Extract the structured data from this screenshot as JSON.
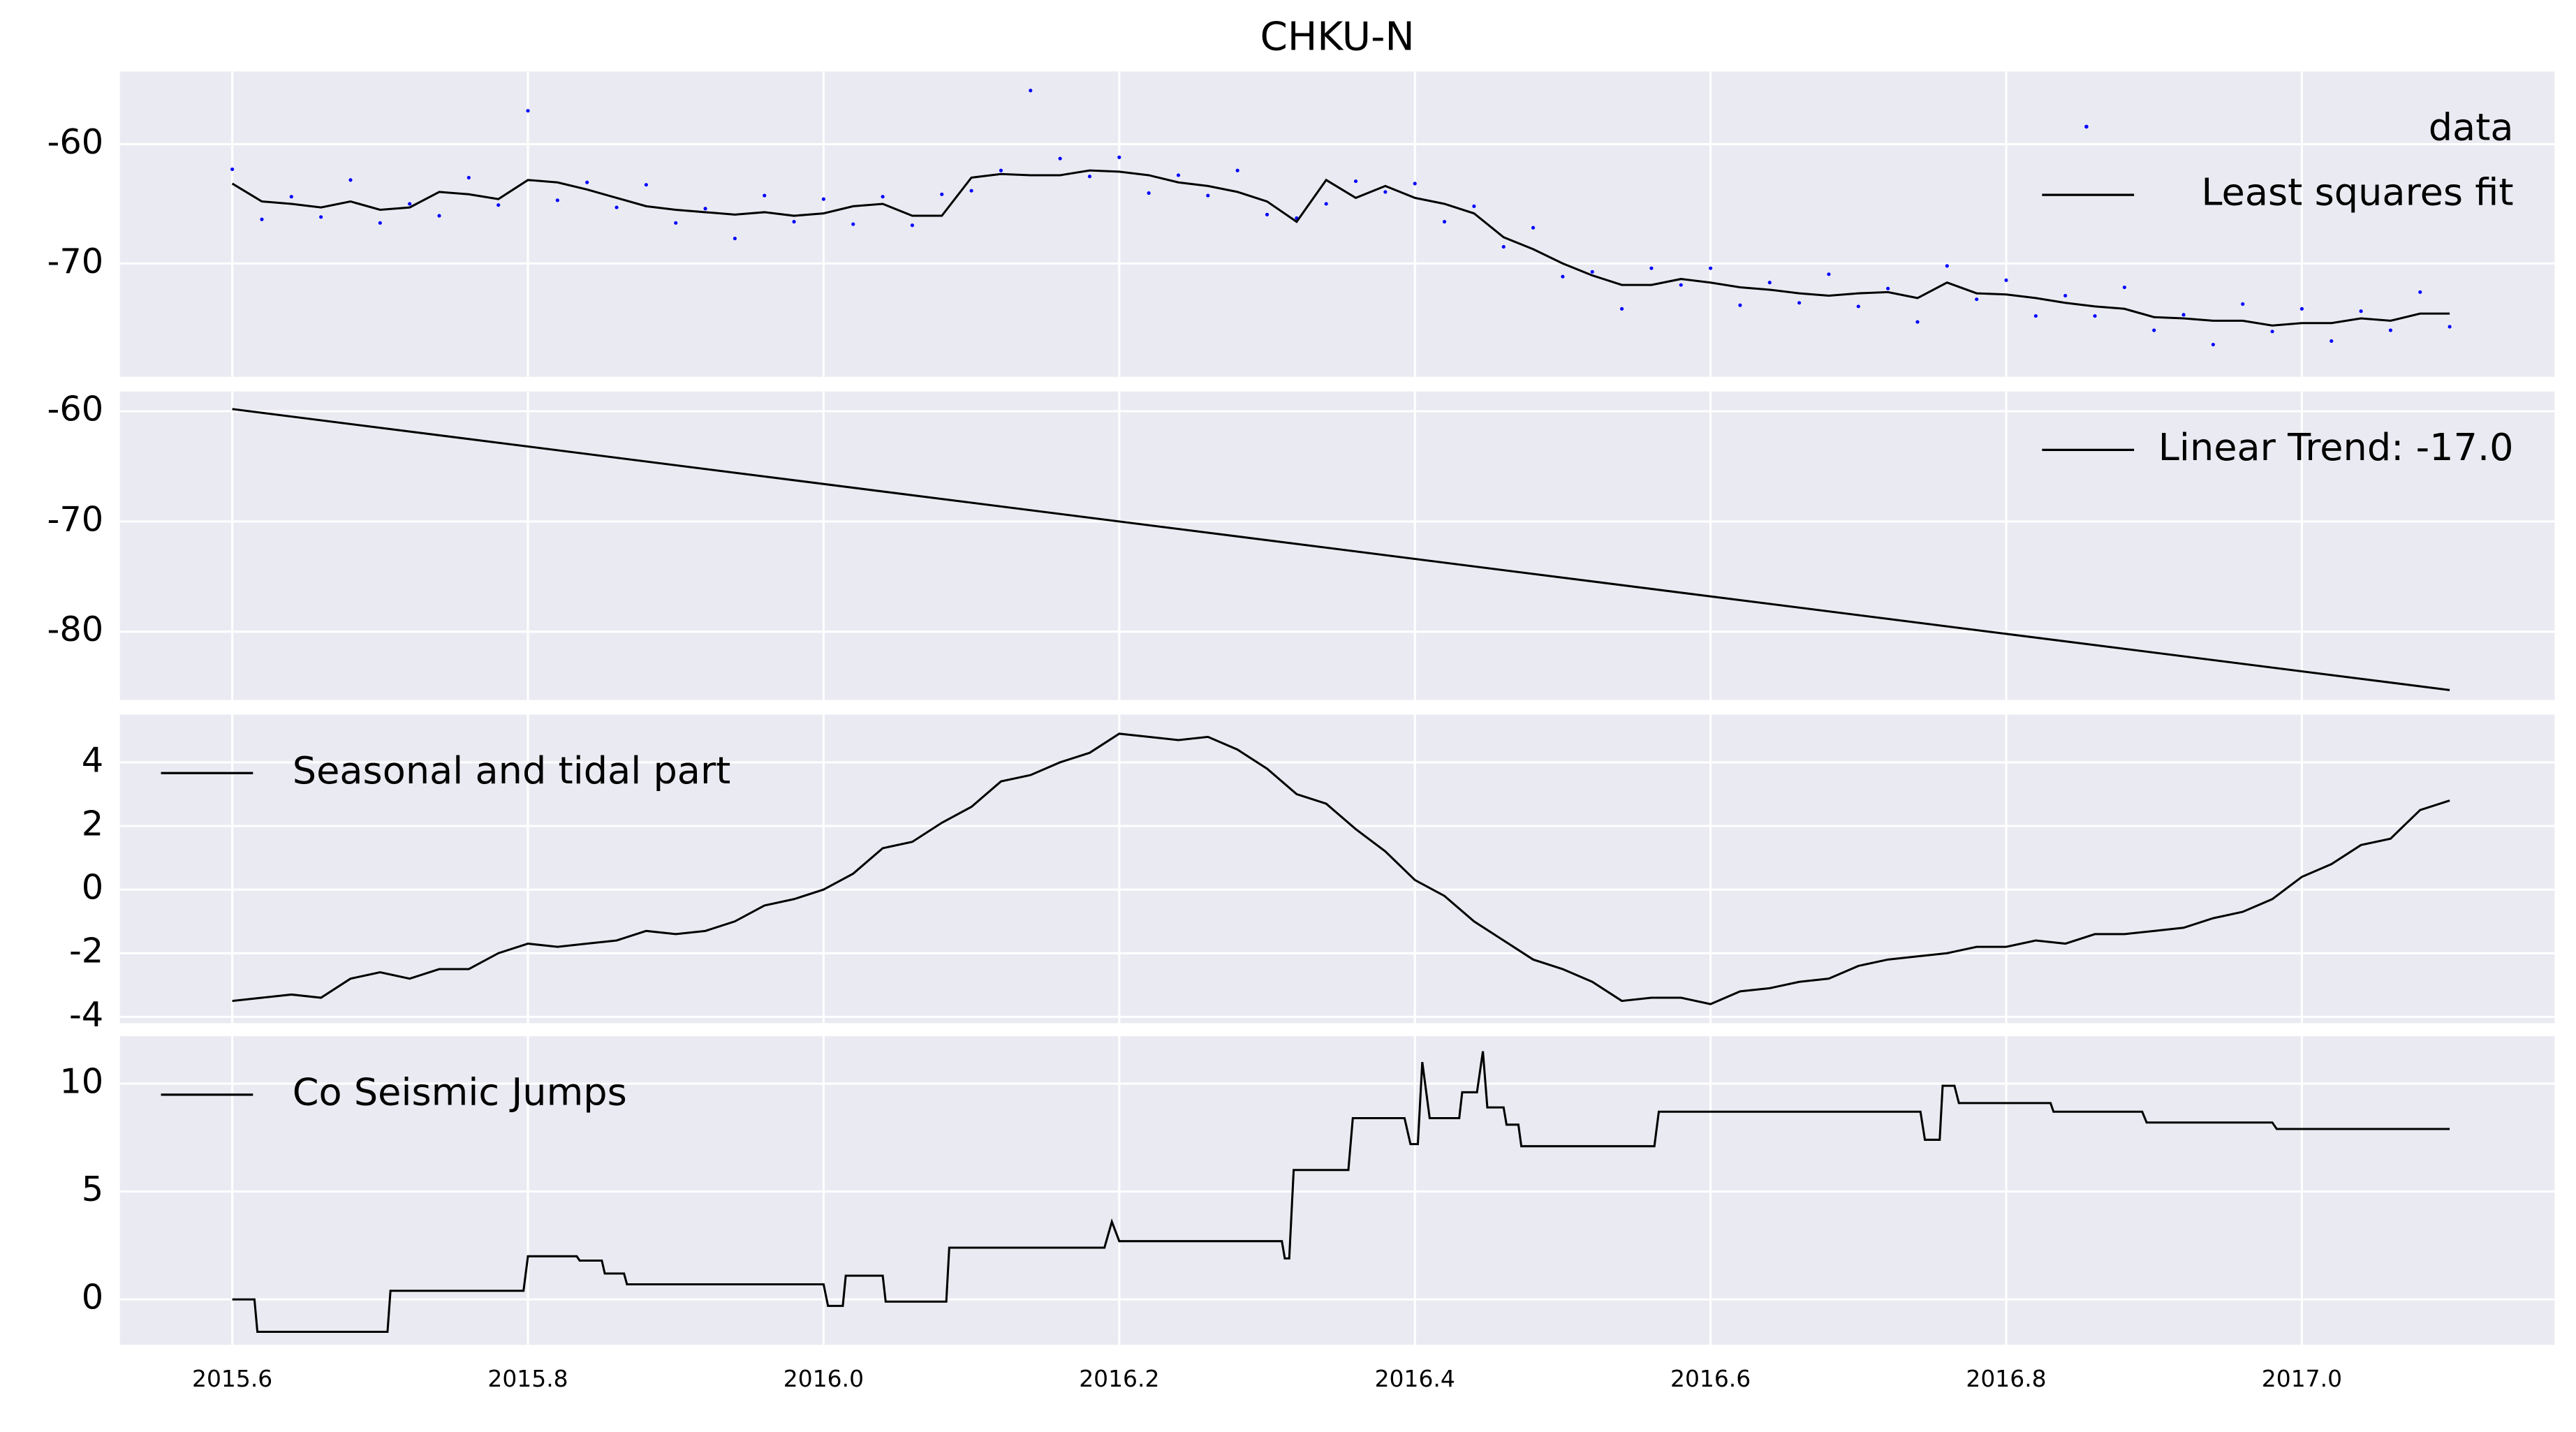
{
  "chart_data": [
    {
      "type": "line",
      "title": "CHKU-N",
      "legend": "upper right",
      "grid": true,
      "ylim": [
        -79.5,
        -53.9
      ],
      "yticks": [
        -60,
        -70
      ],
      "x": [
        2015.6,
        2015.62,
        2015.64,
        2015.66,
        2015.68,
        2015.7,
        2015.72,
        2015.74,
        2015.76,
        2015.78,
        2015.8,
        2015.82,
        2015.84,
        2015.86,
        2015.88,
        2015.9,
        2015.92,
        2015.94,
        2015.96,
        2015.98,
        2016.0,
        2016.02,
        2016.04,
        2016.06,
        2016.08,
        2016.1,
        2016.12,
        2016.14,
        2016.16,
        2016.18,
        2016.2,
        2016.22,
        2016.24,
        2016.26,
        2016.28,
        2016.3,
        2016.32,
        2016.34,
        2016.36,
        2016.38,
        2016.4,
        2016.42,
        2016.44,
        2016.46,
        2016.48,
        2016.5,
        2016.52,
        2016.54,
        2016.56,
        2016.58,
        2016.6,
        2016.62,
        2016.64,
        2016.66,
        2016.68,
        2016.7,
        2016.72,
        2016.74,
        2016.76,
        2016.78,
        2016.8,
        2016.82,
        2016.84,
        2016.86,
        2016.88,
        2016.9,
        2016.92,
        2016.94,
        2016.96,
        2016.98,
        2017.0,
        2017.02,
        2017.04,
        2017.06,
        2017.08,
        2017.1
      ],
      "series": [
        {
          "name": "data",
          "type": "scatter",
          "color": "#0000ff",
          "values": [
            -62.1,
            -66.3,
            -64.4,
            -66.1,
            -63.0,
            -66.6,
            -65.0,
            -66.0,
            -62.8,
            -65.1,
            -57.2,
            -64.7,
            -63.2,
            -65.3,
            -63.4,
            -66.6,
            -65.4,
            -67.9,
            -64.3,
            -66.5,
            -64.6,
            -66.7,
            -64.4,
            -66.8,
            -64.2,
            -63.9,
            -62.2,
            -55.5,
            -61.2,
            -62.7,
            -61.1,
            -64.1,
            -62.6,
            -64.3,
            -62.2,
            -65.9,
            -66.2,
            -65.0,
            -63.1,
            -64.0,
            -63.3,
            -66.5,
            -65.2,
            -68.6,
            -67.0,
            -71.1,
            -70.7,
            -73.8,
            -70.4,
            -71.8,
            -70.4,
            -73.5,
            -71.6,
            -73.3,
            -70.9,
            -73.6,
            -72.1,
            -74.9,
            -70.2,
            -73.0,
            -71.4,
            -74.4,
            -72.7,
            -74.4,
            -72.0,
            -75.6,
            -74.3,
            -76.8,
            -73.4,
            -75.7,
            -73.8,
            -76.5,
            -74.0,
            -75.6,
            -72.4,
            -75.3
          ]
        },
        {
          "name": "Least squares fit",
          "type": "line",
          "color": "#000000",
          "values": [
            -63.3,
            -64.8,
            -65,
            -65.3,
            -64.8,
            -65.5,
            -65.3,
            -64,
            -64.2,
            -64.6,
            -63,
            -63.2,
            -63.8,
            -64.5,
            -65.2,
            -65.5,
            -65.7,
            -65.9,
            -65.7,
            -66,
            -65.8,
            -65.2,
            -65,
            -66,
            -66,
            -62.8,
            -62.5,
            -62.6,
            -62.6,
            -62.2,
            -62.3,
            -62.6,
            -63.2,
            -63.5,
            -64,
            -64.8,
            -66.5,
            -63,
            -64.5,
            -63.5,
            -64.5,
            -65,
            -65.8,
            -67.8,
            -68.8,
            -70,
            -71,
            -71.8,
            -71.8,
            -71.3,
            -71.6,
            -72,
            -72.2,
            -72.5,
            -72.7,
            -72.5,
            -72.4,
            -72.9,
            -71.6,
            -72.5,
            -72.6,
            -72.9,
            -73.3,
            -73.6,
            -73.8,
            -74.5,
            -74.6,
            -74.8,
            -74.8,
            -75.2,
            -75,
            -75,
            -74.6,
            -74.8,
            -74.2,
            -74.2
          ]
        }
      ]
    },
    {
      "type": "line",
      "legend": "upper right",
      "grid": true,
      "ylim": [
        -86.2,
        -58.2
      ],
      "yticks": [
        -60,
        -70,
        -80
      ],
      "x": [
        2015.6,
        2017.1
      ],
      "series": [
        {
          "name": "Linear Trend: -17.0",
          "type": "line",
          "color": "#000000",
          "values": [
            -59.8,
            -85.3
          ]
        }
      ]
    },
    {
      "type": "line",
      "legend": "upper left",
      "grid": true,
      "ylim": [
        -4.2,
        5.5
      ],
      "yticks": [
        4,
        2,
        0,
        -2,
        -4
      ],
      "x": [
        2015.6,
        2015.62,
        2015.64,
        2015.66,
        2015.68,
        2015.7,
        2015.72,
        2015.74,
        2015.76,
        2015.78,
        2015.8,
        2015.82,
        2015.84,
        2015.86,
        2015.88,
        2015.9,
        2015.92,
        2015.94,
        2015.96,
        2015.98,
        2016.0,
        2016.02,
        2016.04,
        2016.06,
        2016.08,
        2016.1,
        2016.12,
        2016.14,
        2016.16,
        2016.18,
        2016.2,
        2016.22,
        2016.24,
        2016.26,
        2016.28,
        2016.3,
        2016.32,
        2016.34,
        2016.36,
        2016.38,
        2016.4,
        2016.42,
        2016.44,
        2016.46,
        2016.48,
        2016.5,
        2016.52,
        2016.54,
        2016.56,
        2016.58,
        2016.6,
        2016.62,
        2016.64,
        2016.66,
        2016.68,
        2016.7,
        2016.72,
        2016.74,
        2016.76,
        2016.78,
        2016.8,
        2016.82,
        2016.84,
        2016.86,
        2016.88,
        2016.9,
        2016.92,
        2016.94,
        2016.96,
        2016.98,
        2017.0,
        2017.02,
        2017.04,
        2017.06,
        2017.08,
        2017.1
      ],
      "series": [
        {
          "name": "Seasonal and tidal part",
          "type": "line",
          "color": "#000000",
          "values": [
            -3.5,
            -3.4,
            -3.3,
            -3.4,
            -2.8,
            -2.6,
            -2.8,
            -2.5,
            -2.5,
            -2,
            -1.7,
            -1.8,
            -1.7,
            -1.6,
            -1.3,
            -1.4,
            -1.3,
            -1.0,
            -0.5,
            -0.3,
            0,
            0.5,
            1.3,
            1.5,
            2.1,
            2.6,
            3.4,
            3.6,
            4.0,
            4.3,
            4.9,
            4.8,
            4.7,
            4.8,
            4.4,
            3.8,
            3.0,
            2.7,
            1.9,
            1.2,
            0.3,
            -0.2,
            -1.0,
            -1.6,
            -2.2,
            -2.5,
            -2.9,
            -3.5,
            -3.4,
            -3.4,
            -3.6,
            -3.2,
            -3.1,
            -2.9,
            -2.8,
            -2.4,
            -2.2,
            -2.1,
            -2.0,
            -1.8,
            -1.8,
            -1.6,
            -1.7,
            -1.4,
            -1.4,
            -1.3,
            -1.2,
            -0.9,
            -0.7,
            -0.3,
            0.4,
            0.8,
            1.4,
            1.6,
            2.5,
            2.8
          ]
        }
      ]
    },
    {
      "type": "line",
      "legend": "upper left",
      "grid": true,
      "ylim": [
        -2.1,
        12.2
      ],
      "yticks": [
        10,
        5,
        0
      ],
      "xlim": [
        2015.524,
        2017.171
      ],
      "xticks": [
        2015.6,
        2015.8,
        {
          "value": 2016.0,
          "label": "2016.0"
        },
        2016.2,
        2016.4,
        2016.6,
        2016.8,
        {
          "value": 2017.0,
          "label": "2017.0"
        }
      ],
      "x": [
        2015.6,
        2015.615,
        2015.617,
        2015.705,
        2015.707,
        2015.797,
        2015.8,
        2015.833,
        2015.835,
        2015.85,
        2015.852,
        2015.865,
        2015.867,
        2016.0,
        2016.003,
        2016.013,
        2016.015,
        2016.04,
        2016.042,
        2016.083,
        2016.085,
        2016.19,
        2016.195,
        2016.2,
        2016.31,
        2016.312,
        2016.315,
        2016.318,
        2016.355,
        2016.358,
        2016.393,
        2016.397,
        2016.402,
        2016.405,
        2016.41,
        2016.43,
        2016.432,
        2016.442,
        2016.446,
        2016.449,
        2016.46,
        2016.462,
        2016.47,
        2016.472,
        2016.562,
        2016.565,
        2016.742,
        2016.745,
        2016.755,
        2016.757,
        2016.765,
        2016.768,
        2016.83,
        2016.832,
        2016.892,
        2016.895,
        2016.98,
        2016.983,
        2017.1
      ],
      "series": [
        {
          "name": "Co Seismic Jumps",
          "type": "line",
          "color": "#000000",
          "values": [
            0,
            0,
            -1.5,
            -1.5,
            0.4,
            0.4,
            2,
            2,
            1.8,
            1.8,
            1.2,
            1.2,
            0.7,
            0.7,
            -0.3,
            -0.3,
            1.1,
            1.1,
            -0.1,
            -0.1,
            2.4,
            2.4,
            3.6,
            2.7,
            2.7,
            1.9,
            1.9,
            6.0,
            6.0,
            8.4,
            8.4,
            7.2,
            7.2,
            11,
            8.4,
            8.4,
            9.6,
            9.6,
            11.5,
            8.9,
            8.9,
            8.1,
            8.1,
            7.1,
            7.1,
            8.7,
            8.7,
            7.4,
            7.4,
            9.9,
            9.9,
            9.1,
            9.1,
            8.7,
            8.7,
            8.2,
            8.2,
            7.9,
            7.9
          ]
        }
      ]
    }
  ]
}
